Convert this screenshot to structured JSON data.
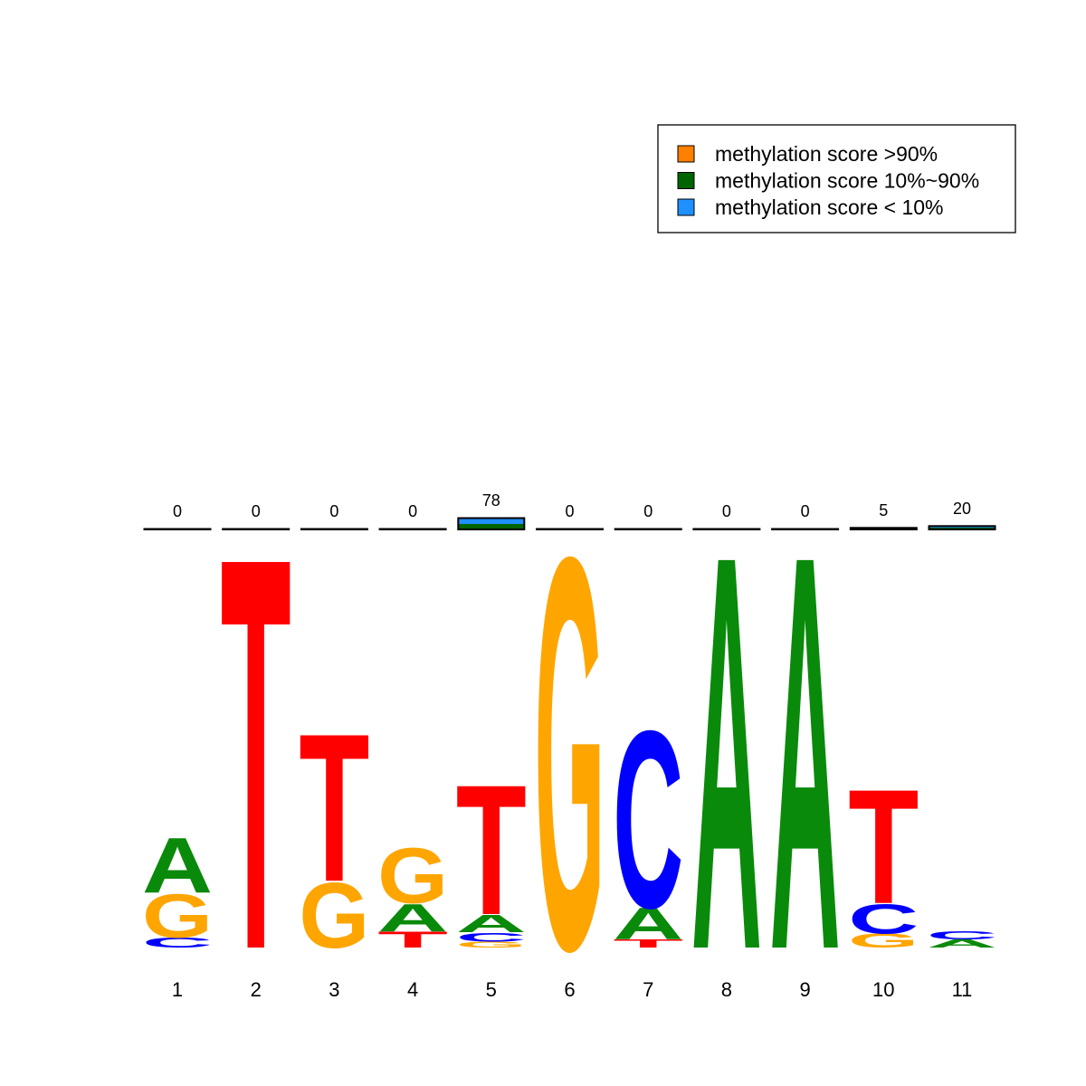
{
  "chart_data": {
    "type": "logo",
    "categories": [
      "1",
      "2",
      "3",
      "4",
      "5",
      "6",
      "7",
      "8",
      "9",
      "10",
      "11"
    ],
    "letter_colors": {
      "A": "#0a8a0a",
      "C": "#0000ff",
      "G": "#ffa500",
      "T": "#ff0000"
    },
    "stacks": [
      {
        "letters": [
          "C",
          "G",
          "A"
        ],
        "values": [
          0.05,
          0.22,
          0.28
        ]
      },
      {
        "letters": [
          "T"
        ],
        "values": [
          1.99
        ]
      },
      {
        "letters": [
          "G",
          "T"
        ],
        "values": [
          0.33,
          0.75
        ]
      },
      {
        "letters": [
          "T",
          "A",
          "G"
        ],
        "values": [
          0.08,
          0.14,
          0.28
        ]
      },
      {
        "letters": [
          "G",
          "C",
          "A",
          "T"
        ],
        "values": [
          0.03,
          0.045,
          0.09,
          0.66
        ]
      },
      {
        "letters": [
          "G"
        ],
        "values": [
          1.99
        ]
      },
      {
        "letters": [
          "T",
          "A",
          "C"
        ],
        "values": [
          0.04,
          0.16,
          0.9
        ]
      },
      {
        "letters": [
          "A"
        ],
        "values": [
          2.0
        ]
      },
      {
        "letters": [
          "A"
        ],
        "values": [
          2.0
        ]
      },
      {
        "letters": [
          "G",
          "C",
          "T"
        ],
        "values": [
          0.07,
          0.15,
          0.58
        ]
      },
      {
        "letters": [
          "A",
          "C"
        ],
        "values": [
          0.04,
          0.04
        ]
      }
    ],
    "methylation_counts": [
      0,
      0,
      0,
      0,
      78,
      0,
      0,
      0,
      0,
      5,
      20
    ],
    "methylation": [
      {
        "name": "methylation score >90%",
        "color": "#ff7f00",
        "values": [
          0,
          0,
          0,
          0,
          0,
          0,
          0,
          0,
          0,
          0,
          0
        ]
      },
      {
        "name": "methylation score 10%~90%",
        "color": "#006400",
        "values": [
          0,
          0,
          0,
          0,
          0.15,
          0,
          0,
          0,
          0,
          0.03,
          0.05
        ]
      },
      {
        "name": "methylation score < 10%",
        "color": "#1e90ff",
        "values": [
          0,
          0,
          0,
          0,
          0.15,
          0,
          0,
          0,
          0,
          0,
          0.03
        ]
      }
    ],
    "legend": "top-right"
  }
}
